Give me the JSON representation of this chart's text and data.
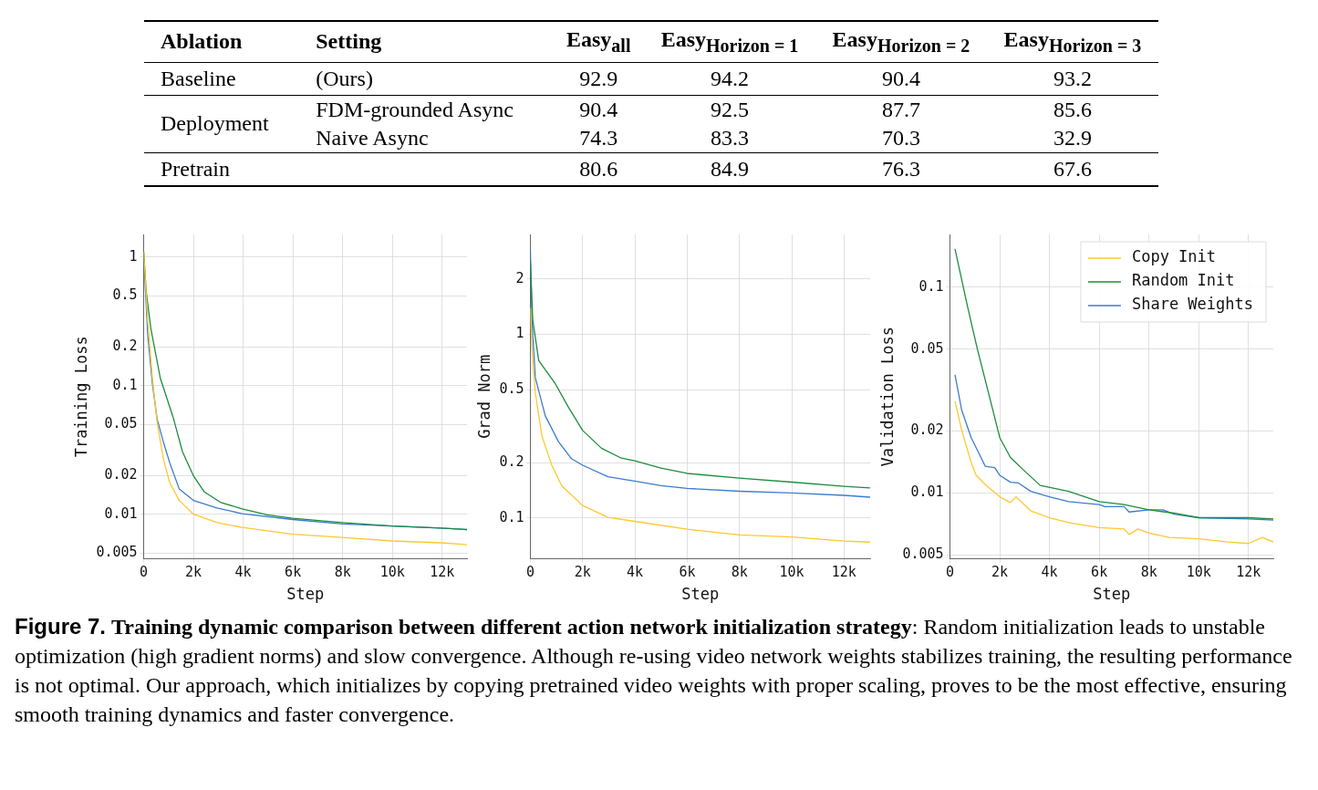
{
  "chart_data": [
    {
      "type": "other",
      "annotations": [
        "Ablation",
        "Setting",
        "Baseline",
        "Deployment"
      ],
      "categories": [
        "(Ours)",
        "FDM-grounded Async",
        "Naive Async",
        "Pretrain"
      ],
      "data_labels": true,
      "series": [
        {
          "name": "Easy$_{all}$",
          "values": [
            92.9,
            90.4,
            74.3,
            80.6
          ]
        },
        {
          "name": "Easy$_{Horizon = 1}$",
          "values": [
            94.2,
            92.5,
            83.3,
            84.9
          ]
        },
        {
          "name": "Easy$_{Horizon = 2}$",
          "values": [
            90.4,
            87.7,
            70.3,
            76.3
          ]
        },
        {
          "name": "Easy$_{Horizon = 3}$",
          "values": [
            93.2,
            85.6,
            32.9,
            67.6
          ]
        }
      ]
    },
    {
      "type": "line",
      "xlabel": "Step",
      "ylabel": "Training Loss",
      "log": "y",
      "grid": true,
      "xlim": [
        0,
        13000
      ],
      "ylim": [
        0.0045,
        1.5
      ],
      "xticks": [
        {
          "value": 0,
          "label": "0"
        },
        {
          "value": 2000,
          "label": "2k"
        },
        {
          "value": 4000,
          "label": "4k"
        },
        {
          "value": 6000,
          "label": "6k"
        },
        {
          "value": 8000,
          "label": "8k"
        },
        {
          "value": 10000,
          "label": "10k"
        },
        {
          "value": 12000,
          "label": "12k"
        }
      ],
      "yticks": [
        0.005,
        0.01,
        0.02,
        0.05,
        0.1,
        0.2,
        0.5,
        1
      ],
      "series": [
        {
          "color": "#fdc830",
          "x": [
            0,
            160,
            350,
            540,
            800,
            1050,
            1430,
            2000,
            2950,
            3960,
            5990,
            7990,
            9990,
            11940,
            13000
          ],
          "values": [
            1.1,
            0.32,
            0.114,
            0.052,
            0.0265,
            0.0175,
            0.0128,
            0.01,
            0.0086,
            0.0079,
            0.007,
            0.0066,
            0.0062,
            0.006,
            0.0058
          ]
        },
        {
          "color": "#1e8c3e",
          "x": [
            0,
            100,
            290,
            670,
            1180,
            1560,
            2000,
            2440,
            3080,
            3960,
            4970,
            5990,
            7990,
            9990,
            11940,
            13000
          ],
          "values": [
            1.1,
            0.54,
            0.276,
            0.114,
            0.057,
            0.0306,
            0.0199,
            0.0149,
            0.0124,
            0.011,
            0.0099,
            0.0093,
            0.0086,
            0.0081,
            0.0078,
            0.0076
          ]
        },
        {
          "color": "#3b7dd0",
          "x": [
            0,
            160,
            350,
            540,
            800,
            1050,
            1430,
            2000,
            2950,
            3960,
            5990,
            7990,
            9990,
            11940,
            13000
          ],
          "values": [
            1.0,
            0.25,
            0.103,
            0.055,
            0.036,
            0.025,
            0.0157,
            0.0128,
            0.0112,
            0.0101,
            0.0091,
            0.0084,
            0.0081,
            0.0078,
            0.0076
          ]
        }
      ]
    },
    {
      "type": "line",
      "xlabel": "Step",
      "ylabel": "Grad Norm",
      "log": "y",
      "grid": true,
      "xlim": [
        0,
        13000
      ],
      "ylim": [
        0.06,
        3.5
      ],
      "xticks": [
        {
          "value": 0,
          "label": "0"
        },
        {
          "value": 2000,
          "label": "2k"
        },
        {
          "value": 4000,
          "label": "4k"
        },
        {
          "value": 6000,
          "label": "6k"
        },
        {
          "value": 8000,
          "label": "8k"
        },
        {
          "value": 10000,
          "label": "10k"
        },
        {
          "value": 12000,
          "label": "12k"
        }
      ],
      "yticks": [
        0.1,
        0.2,
        0.5,
        1,
        2
      ],
      "series": [
        {
          "color": "#fdc830",
          "x": [
            0,
            60,
            190,
            440,
            820,
            1200,
            2000,
            2970,
            3990,
            6000,
            8000,
            10000,
            12000,
            13000
          ],
          "values": [
            1.39,
            0.83,
            0.48,
            0.28,
            0.194,
            0.15,
            0.117,
            0.101,
            0.096,
            0.087,
            0.081,
            0.079,
            0.075,
            0.074
          ]
        },
        {
          "color": "#1e8c3e",
          "x": [
            0,
            90,
            320,
            950,
            1460,
            2000,
            2720,
            3480,
            3990,
            5000,
            6000,
            8000,
            10000,
            12000,
            13000
          ],
          "values": [
            2.49,
            1.2,
            0.72,
            0.54,
            0.4,
            0.3,
            0.24,
            0.212,
            0.205,
            0.187,
            0.175,
            0.165,
            0.157,
            0.149,
            0.146
          ]
        },
        {
          "color": "#3b7dd0",
          "x": [
            0,
            60,
            190,
            570,
            1080,
            1580,
            2000,
            2970,
            3990,
            5000,
            6000,
            8000,
            10000,
            12000,
            13000
          ],
          "values": [
            2.88,
            1.2,
            0.58,
            0.36,
            0.26,
            0.21,
            0.194,
            0.168,
            0.159,
            0.15,
            0.145,
            0.14,
            0.137,
            0.133,
            0.13
          ]
        }
      ]
    },
    {
      "type": "line",
      "xlabel": "Step",
      "ylabel": "Validation Loss",
      "log": "y",
      "grid": true,
      "legend": "top right",
      "xlim": [
        0,
        13000
      ],
      "ylim": [
        0.0048,
        0.18
      ],
      "xticks": [
        {
          "value": 0,
          "label": "0"
        },
        {
          "value": 2000,
          "label": "2k"
        },
        {
          "value": 4000,
          "label": "4k"
        },
        {
          "value": 6000,
          "label": "6k"
        },
        {
          "value": 8000,
          "label": "8k"
        },
        {
          "value": 10000,
          "label": "10k"
        },
        {
          "value": 12000,
          "label": "12k"
        }
      ],
      "yticks": [
        0.005,
        0.01,
        0.02,
        0.05,
        0.1
      ],
      "series": [
        {
          "name": "Copy Init",
          "color": "#fdc830",
          "x": [
            200,
            470,
            850,
            1050,
            1420,
            2000,
            2430,
            2650,
            3250,
            4000,
            4770,
            6000,
            7000,
            7200,
            7560,
            8000,
            8820,
            10000,
            11160,
            12000,
            12560,
            13000
          ],
          "values": [
            0.028,
            0.0202,
            0.0141,
            0.0122,
            0.011,
            0.0096,
            0.009,
            0.0096,
            0.0082,
            0.0076,
            0.0072,
            0.0068,
            0.0067,
            0.0063,
            0.0067,
            0.0064,
            0.0061,
            0.006,
            0.0058,
            0.0057,
            0.0061,
            0.0058
          ]
        },
        {
          "name": "Random Init",
          "color": "#1e8c3e",
          "x": [
            200,
            720,
            1100,
            1480,
            2000,
            2430,
            3000,
            3630,
            4770,
            6000,
            7000,
            8000,
            9000,
            10000,
            12000,
            13000
          ],
          "values": [
            0.153,
            0.079,
            0.05,
            0.033,
            0.0186,
            0.0149,
            0.0128,
            0.0109,
            0.0102,
            0.0091,
            0.0088,
            0.0083,
            0.008,
            0.0076,
            0.0076,
            0.0075
          ]
        },
        {
          "name": "Share Weights",
          "color": "#3b7dd0",
          "x": [
            200,
            470,
            850,
            1420,
            1800,
            2000,
            2430,
            2750,
            3250,
            4000,
            4770,
            6000,
            6230,
            7000,
            7200,
            8000,
            8570,
            9000,
            10000,
            12000,
            13000
          ],
          "values": [
            0.0375,
            0.0253,
            0.0186,
            0.0135,
            0.0133,
            0.0122,
            0.0113,
            0.0112,
            0.0102,
            0.0096,
            0.0091,
            0.0088,
            0.0086,
            0.0086,
            0.0081,
            0.0083,
            0.0083,
            0.0079,
            0.0076,
            0.0075,
            0.0074
          ]
        }
      ]
    },
    {
      "type": "other",
      "annotations": [
        "Figure 7.",
        "Training dynamic comparison between different action network initialization strategy",
        ": Random initialization leads to unstable optimization (high gradient norms) and slow convergence. Although re-using video network weights stabilizes training, the resulting performance is not optimal. Our approach, which initializes by copying pretrained video weights with proper scaling, proves to be the most effective, ensuring smooth training dynamics and faster convergence."
      ]
    }
  ]
}
